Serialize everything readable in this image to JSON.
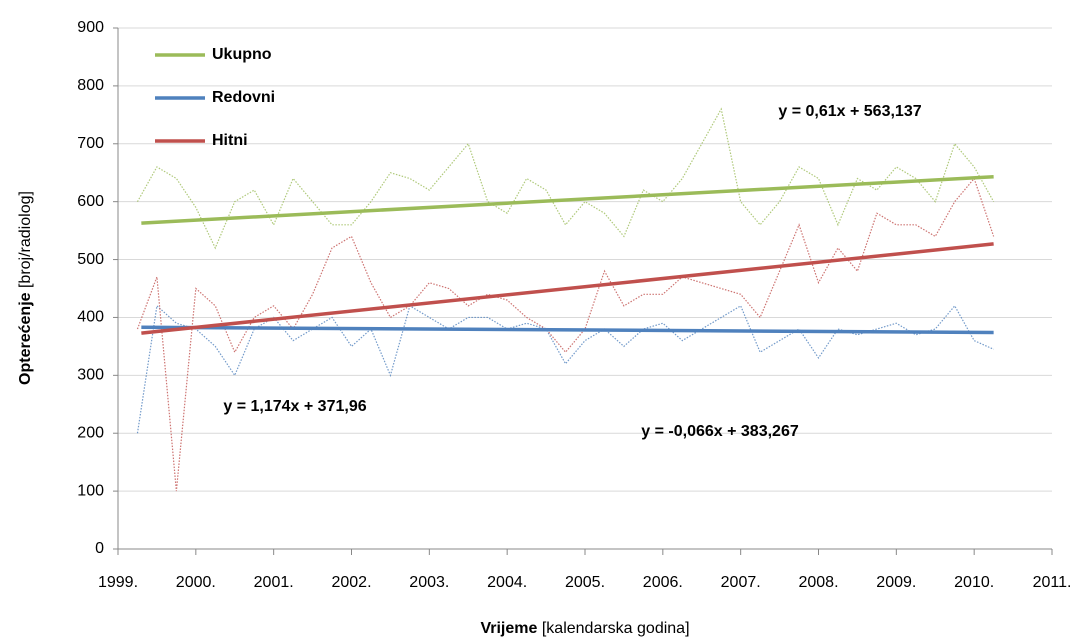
{
  "chart_data": {
    "type": "line",
    "x_label_bold": "Vrijeme",
    "x_label_rest": " [kalendarska godina]",
    "y_label_bold": "Opterećenje",
    "y_label_rest": " [broj/radiolog]",
    "x": [
      1999.25,
      1999.5,
      1999.75,
      2000,
      2000.25,
      2000.5,
      2000.75,
      2001,
      2001.25,
      2001.5,
      2001.75,
      2002,
      2002.25,
      2002.5,
      2002.75,
      2003,
      2003.25,
      2003.5,
      2003.75,
      2004,
      2004.25,
      2004.5,
      2004.75,
      2005,
      2005.25,
      2005.5,
      2005.75,
      2006,
      2006.25,
      2006.5,
      2006.75,
      2007,
      2007.25,
      2007.5,
      2007.75,
      2008,
      2008.25,
      2008.5,
      2008.75,
      2009,
      2009.25,
      2009.5,
      2009.75,
      2010,
      2010.25
    ],
    "series": [
      {
        "name": "Ukupno",
        "color": "#9bbb59",
        "values": [
          600,
          660,
          640,
          590,
          520,
          600,
          620,
          560,
          640,
          600,
          560,
          560,
          600,
          650,
          640,
          620,
          660,
          700,
          600,
          580,
          640,
          620,
          560,
          600,
          580,
          540,
          620,
          600,
          640,
          700,
          760,
          600,
          560,
          600,
          660,
          640,
          560,
          640,
          620,
          660,
          640,
          600,
          700,
          660,
          600
        ]
      },
      {
        "name": "Redovni",
        "color": "#4f81bd",
        "values": [
          200,
          420,
          390,
          380,
          350,
          300,
          380,
          400,
          360,
          380,
          400,
          350,
          380,
          300,
          420,
          400,
          380,
          400,
          400,
          380,
          390,
          380,
          320,
          360,
          380,
          350,
          380,
          390,
          360,
          380,
          400,
          420,
          340,
          360,
          380,
          330,
          380,
          370,
          380,
          390,
          370,
          380,
          420,
          360,
          345
        ]
      },
      {
        "name": "Hitni",
        "color": "#c0504d",
        "values": [
          380,
          470,
          100,
          450,
          420,
          340,
          400,
          420,
          380,
          440,
          520,
          540,
          460,
          400,
          420,
          460,
          450,
          420,
          440,
          430,
          400,
          380,
          340,
          380,
          480,
          420,
          440,
          440,
          470,
          460,
          450,
          440,
          400,
          480,
          560,
          460,
          520,
          480,
          580,
          560,
          560,
          540,
          600,
          640,
          540
        ]
      }
    ],
    "trend_lines": [
      {
        "color": "#9bbb59",
        "x": [
          1999.3,
          2010.25
        ],
        "values": [
          563,
          643
        ]
      },
      {
        "color": "#4f81bd",
        "x": [
          1999.3,
          2010.25
        ],
        "values": [
          383,
          374
        ]
      },
      {
        "color": "#c0504d",
        "x": [
          1999.3,
          2010.25
        ],
        "values": [
          373,
          527
        ]
      }
    ],
    "annotations": [
      {
        "text": "y = 0,61x + 563,137",
        "color": "#9bbb59"
      },
      {
        "text": "y = 1,174x + 371,96",
        "color": "#c0504d"
      },
      {
        "text": "y = -0,066x + 383,267",
        "color": "#4f81bd"
      }
    ],
    "xlim": [
      1999,
      2011
    ],
    "xticks": [
      {
        "value": 1999,
        "label": "1999."
      },
      {
        "value": 2000,
        "label": "2000."
      },
      {
        "value": 2001,
        "label": "2001."
      },
      {
        "value": 2002,
        "label": "2002."
      },
      {
        "value": 2003,
        "label": "2003."
      },
      {
        "value": 2004,
        "label": "2004."
      },
      {
        "value": 2005,
        "label": "2005."
      },
      {
        "value": 2006,
        "label": "2006."
      },
      {
        "value": 2007,
        "label": "2007."
      },
      {
        "value": 2008,
        "label": "2008."
      },
      {
        "value": 2009,
        "label": "2009."
      },
      {
        "value": 2010,
        "label": "2010."
      },
      {
        "value": 2011,
        "label": "2011."
      }
    ],
    "ylim": [
      0,
      900
    ],
    "yticks": [
      0,
      100,
      200,
      300,
      400,
      500,
      600,
      700,
      800,
      900
    ],
    "grid": true,
    "legend": "upper-left"
  }
}
